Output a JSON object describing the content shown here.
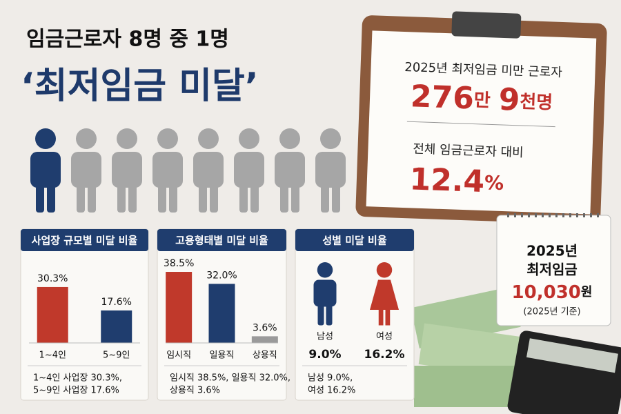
{
  "header": {
    "line1": "임금근로자 8명 중 1명",
    "line2": "‘최저임금 미달’"
  },
  "clipboard": {
    "label1": "2025년 최저임금 미만 근로자",
    "count_a": "276",
    "unit_a": "만",
    "count_b": "9",
    "unit_b": "천명",
    "label2": "전체 임금근로자 대비",
    "ratio": "12.4",
    "ratio_unit": "%"
  },
  "calendar": {
    "year": "2025년",
    "label": "최저임금",
    "amount": "10,030",
    "unit": "원",
    "note": "(2025년 기준)"
  },
  "chart_data": [
    {
      "type": "bar",
      "title": "사업장 규모별 미달 비율",
      "categories": [
        "1~4인",
        "5~9인"
      ],
      "values": [
        30.3,
        17.6
      ],
      "value_labels": [
        "30.3%",
        "17.6%"
      ],
      "colors": [
        "#c0392b",
        "#1f3d6e"
      ],
      "ylim": [
        0,
        40
      ],
      "summary": [
        "1~4인 사업장 30.3%,",
        "5~9인 사업장 17.6%"
      ]
    },
    {
      "type": "bar",
      "title": "고용형태별 미달 비율",
      "categories": [
        "임시직",
        "일용직",
        "상용직"
      ],
      "values": [
        38.5,
        32.0,
        3.6
      ],
      "value_labels": [
        "38.5%",
        "32.0%",
        "3.6%"
      ],
      "colors": [
        "#c0392b",
        "#1f3d6e",
        "#9a9a9a"
      ],
      "ylim": [
        0,
        40
      ],
      "summary": [
        "임시직 38.5%, 일용직 32.0%,",
        "상용직 3.6%"
      ]
    },
    {
      "type": "pictogram",
      "title": "성별 미달 비율",
      "categories": [
        "남성",
        "여성"
      ],
      "values": [
        9.0,
        16.2
      ],
      "value_labels": [
        "9.0%",
        "16.2%"
      ],
      "colors": [
        "#1f3d6e",
        "#c0392b"
      ],
      "summary": [
        "남성 9.0%,",
        "여성 16.2%"
      ]
    }
  ]
}
